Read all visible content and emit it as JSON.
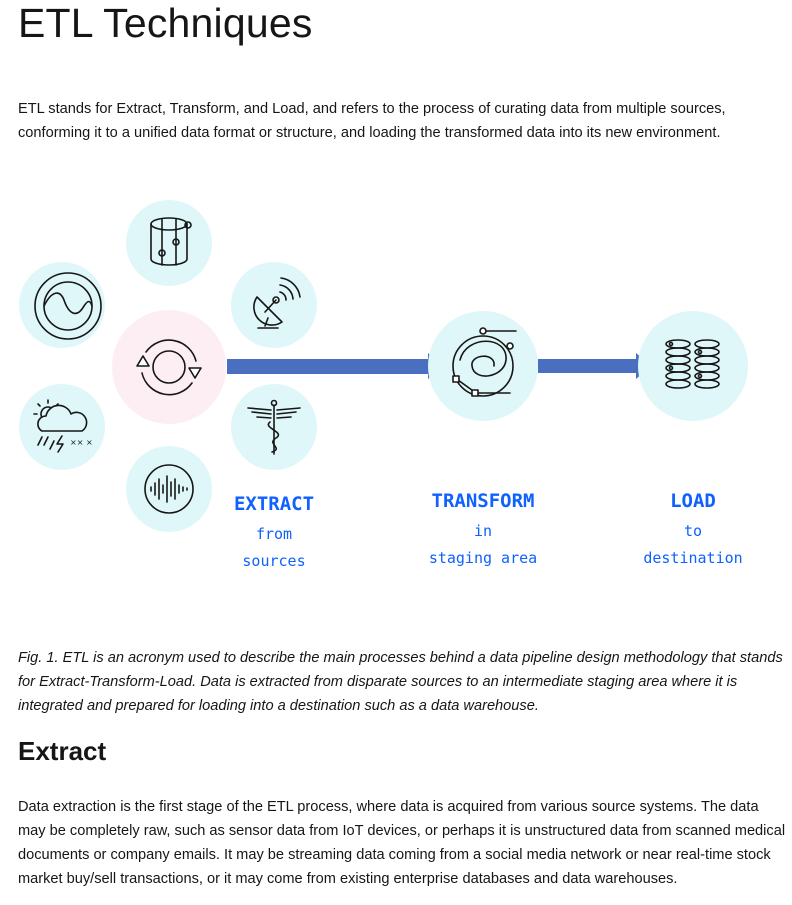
{
  "page": {
    "title": "ETL Techniques",
    "intro": "ETL stands for Extract, Transform, and Load, and refers to the process of curating data from multiple sources, conforming it to a unified data format or structure, and loading the transformed data into its new environment.",
    "caption": "Fig. 1. ETL is an acronym used to describe the main processes behind a data pipeline design methodology that stands for Extract-Transform-Load. Data is extracted from disparate sources to an intermediate staging area where it is integrated and prepared for loading into a destination such as a data warehouse.",
    "section_heading": "Extract",
    "section_body": "Data extraction is the first stage of the ETL process, where data is acquired from various source systems. The data may be completely raw, such as sensor data from IoT devices, or perhaps it is unstructured data from scanned medical documents or company emails. It may be streaming data coming from a social media network or near real-time stock market buy/sell transactions, or it may come from existing enterprise databases and data warehouses."
  },
  "diagram": {
    "stages": [
      {
        "title": "EXTRACT",
        "line1": "from",
        "line2": "sources"
      },
      {
        "title": "TRANSFORM",
        "line1": "in",
        "line2": "staging area"
      },
      {
        "title": "LOAD",
        "line1": "to",
        "line2": "destination"
      }
    ],
    "source_icons": [
      "database-cylinder-icon",
      "sine-wave-icon",
      "satellite-dish-icon",
      "weather-storm-icon",
      "caduceus-icon",
      "audio-waveform-icon"
    ],
    "colors": {
      "circle_fill": "#dff7f9",
      "hub_fill": "#fdeef4",
      "arrow": "#4a6fc0",
      "stage_text": "#0f62fe",
      "stroke": "#161616"
    }
  }
}
